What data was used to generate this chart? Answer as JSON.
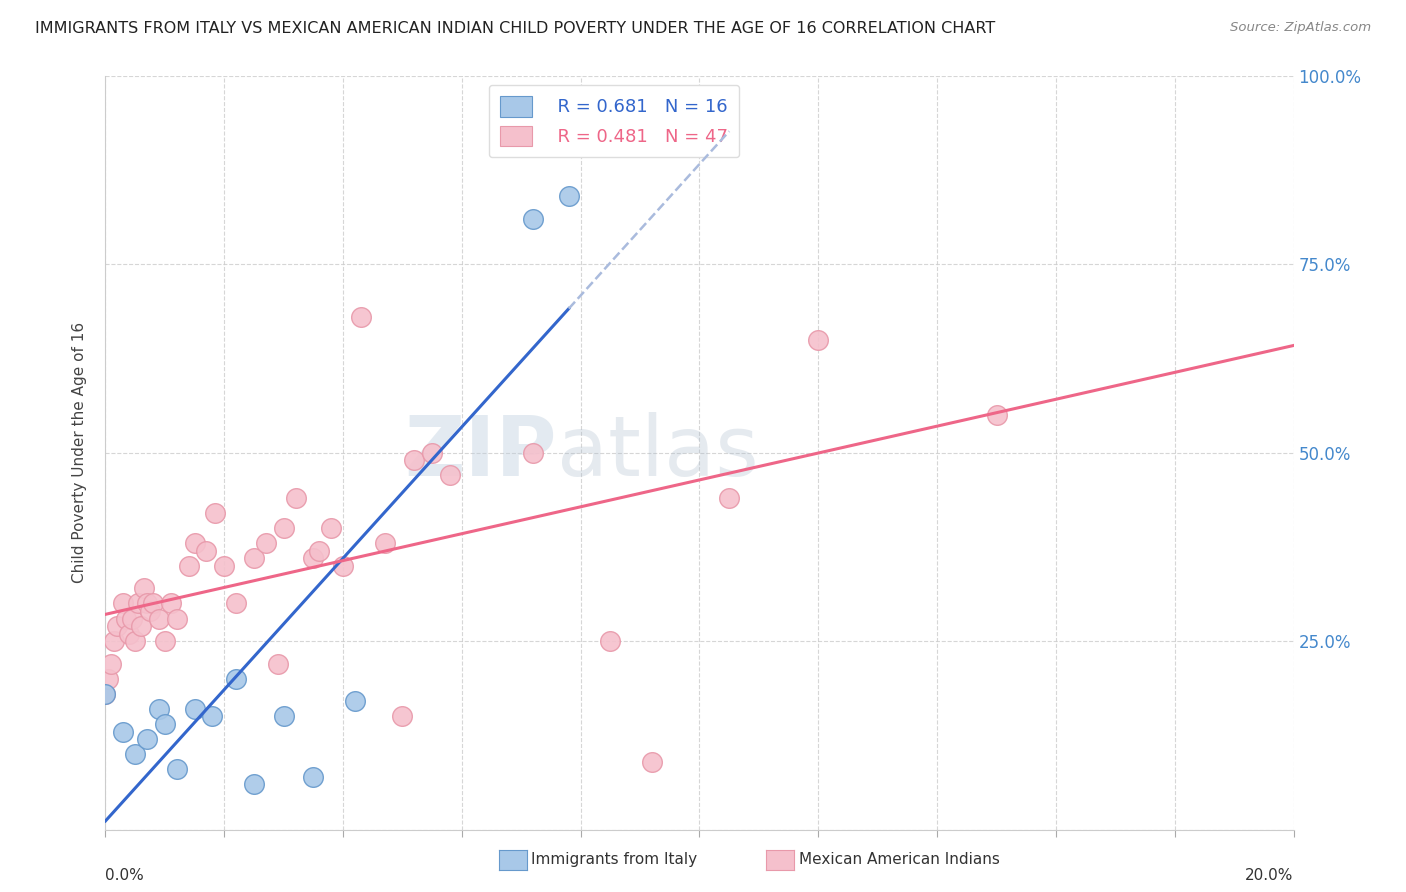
{
  "title": "IMMIGRANTS FROM ITALY VS MEXICAN AMERICAN INDIAN CHILD POVERTY UNDER THE AGE OF 16 CORRELATION CHART",
  "source": "Source: ZipAtlas.com",
  "ylabel": "Child Poverty Under the Age of 16",
  "legend_label1": "Immigrants from Italy",
  "legend_label2": "Mexican American Indians",
  "legend1_r": "R = 0.681",
  "legend1_n": "N = 16",
  "legend2_r": "R = 0.481",
  "legend2_n": "N = 47",
  "watermark_zip": "ZIP",
  "watermark_atlas": "atlas",
  "blue_scatter_face": "#A8C8E8",
  "blue_scatter_edge": "#6699CC",
  "pink_scatter_face": "#F5C0CC",
  "pink_scatter_edge": "#E899AA",
  "blue_line_color": "#3366CC",
  "pink_line_color": "#EE6688",
  "dash_color": "#AABBDD",
  "right_tick_color": "#4488CC",
  "xlim": [
    0,
    20
  ],
  "ylim": [
    0,
    100
  ],
  "italy_x": [
    0.0,
    0.3,
    0.5,
    0.7,
    0.9,
    1.0,
    1.2,
    1.5,
    1.8,
    2.2,
    2.5,
    3.0,
    3.5,
    4.2,
    7.2,
    7.8
  ],
  "italy_y": [
    18,
    13,
    10,
    12,
    16,
    14,
    8,
    16,
    15,
    20,
    6,
    15,
    7,
    17,
    81,
    84
  ],
  "mex_x": [
    0.0,
    0.05,
    0.1,
    0.15,
    0.2,
    0.3,
    0.35,
    0.4,
    0.45,
    0.5,
    0.55,
    0.6,
    0.65,
    0.7,
    0.75,
    0.8,
    0.9,
    1.0,
    1.1,
    1.2,
    1.4,
    1.5,
    1.7,
    1.85,
    2.0,
    2.2,
    2.5,
    2.7,
    2.9,
    3.0,
    3.2,
    3.5,
    3.6,
    3.8,
    4.0,
    4.3,
    4.7,
    5.0,
    5.2,
    5.5,
    5.8,
    7.2,
    8.5,
    9.2,
    10.5,
    12.0,
    15.0
  ],
  "mex_y": [
    18,
    20,
    22,
    25,
    27,
    30,
    28,
    26,
    28,
    25,
    30,
    27,
    32,
    30,
    29,
    30,
    28,
    25,
    30,
    28,
    35,
    38,
    37,
    42,
    35,
    30,
    36,
    38,
    22,
    40,
    44,
    36,
    37,
    40,
    35,
    68,
    38,
    15,
    49,
    50,
    47,
    50,
    25,
    9,
    44,
    65,
    55
  ]
}
